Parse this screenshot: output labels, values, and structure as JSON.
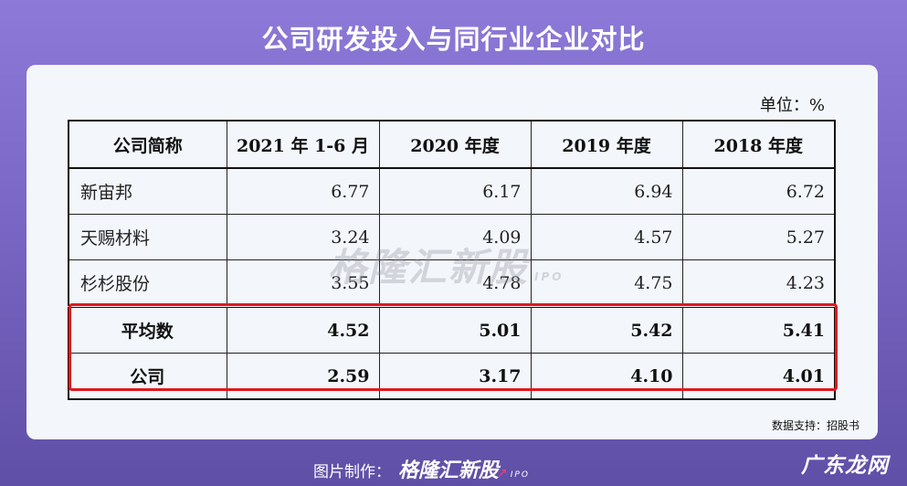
{
  "title": "公司研发投入与同行业企业对比",
  "unit": "单位：%",
  "table": {
    "headers": [
      "公司简称",
      "2021 年 1-6 月",
      "2020 年度",
      "2019 年度",
      "2018 年度"
    ],
    "rows": [
      {
        "name": "新宙邦",
        "values": [
          "6.77",
          "6.17",
          "6.94",
          "6.72"
        ]
      },
      {
        "name": "天赐材料",
        "values": [
          "3.24",
          "4.09",
          "4.57",
          "5.27"
        ]
      },
      {
        "name": "杉杉股份",
        "values": [
          "3.55",
          "4.78",
          "4.75",
          "4.23"
        ]
      }
    ],
    "summary_rows": [
      {
        "name": "平均数",
        "values": [
          "4.52",
          "5.01",
          "5.42",
          "5.41"
        ]
      },
      {
        "name": "公司",
        "values": [
          "2.59",
          "3.17",
          "4.10",
          "4.01"
        ]
      }
    ],
    "highlight_color": "#e0191f"
  },
  "watermark": {
    "text": "格隆汇新股",
    "sub": "IPO"
  },
  "source": "数据支持：招股书",
  "footer": {
    "prefix": "图片制作：",
    "brand": "格隆汇新股",
    "sub": "IPO"
  },
  "site_mark": "广东龙网",
  "colors": {
    "background": "#7a66c4",
    "card": "#f3f6fa",
    "highlight": "#e0191f"
  }
}
